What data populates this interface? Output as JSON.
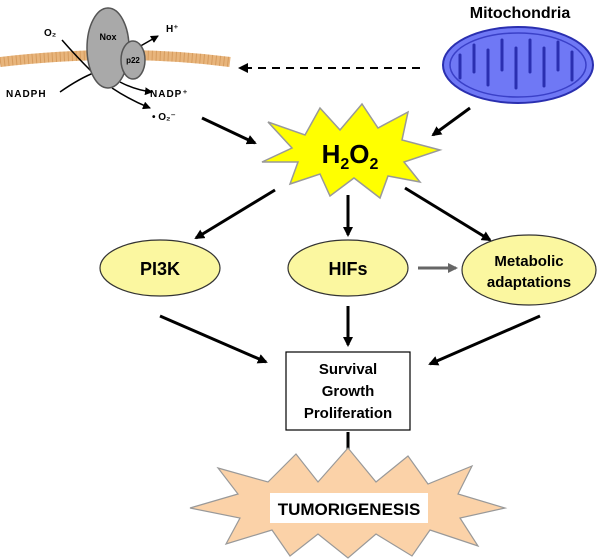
{
  "membrane": {
    "o2": "O₂",
    "nox": "Nox",
    "p22": "p22",
    "h_plus": "H⁺",
    "nadph": "NADPH",
    "nadp_plus": "NADP⁺",
    "superoxide": "• O₂⁻"
  },
  "mitochondria": {
    "label": "Mitochondria"
  },
  "h2o2": {
    "label_main": "H",
    "sub1": "2",
    "mid": "O",
    "sub2": "2"
  },
  "nodes": {
    "pi3k": "PI3K",
    "hifs": "HIFs",
    "metabolic_line1": "Metabolic",
    "metabolic_line2": "adaptations"
  },
  "outcome": {
    "line1": "Survival",
    "line2": "Growth",
    "line3": "Proliferation"
  },
  "tumorigenesis": {
    "label": "TUMORIGENESIS"
  },
  "colors": {
    "membrane": "#e8b57c",
    "mitochondria_fill": "#6f78f5",
    "mitochondria_stroke": "#2a2fb0",
    "starburst": "#ffff00",
    "ellipse": "#fbf7a0",
    "tumor_star": "#fbd2a8",
    "gray_protein": "#a9a9a9"
  }
}
